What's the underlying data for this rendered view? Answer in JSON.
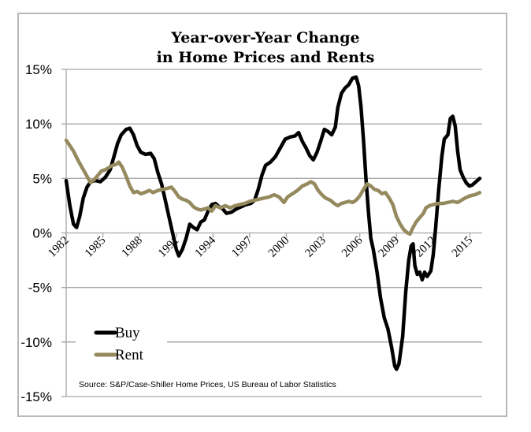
{
  "chart_data": {
    "type": "line",
    "title": "Year-over-Year Change\nin Home Prices and Rents",
    "title_lines": [
      "Year-over-Year Change",
      "in Home Prices and Rents"
    ],
    "xlabel": "",
    "ylabel": "",
    "xlim": [
      1982,
      2016
    ],
    "ylim": [
      -15,
      15
    ],
    "grid": "horizontal",
    "legend_position": "lower-left",
    "x_ticks": [
      1982,
      1985,
      1988,
      1991,
      1994,
      1997,
      2000,
      2003,
      2006,
      2009,
      2012,
      2015
    ],
    "x_tick_labels": [
      "1982",
      "1985",
      "1988",
      "1991",
      "1994",
      "1997",
      "2000",
      "2003",
      "2006",
      "2009",
      "2012",
      "2015"
    ],
    "y_ticks": [
      15,
      10,
      5,
      0,
      -5,
      -10,
      -15
    ],
    "y_tick_labels": [
      "15%",
      "10%",
      "5%",
      "0%",
      "-5%",
      "-10%",
      "-15%"
    ],
    "series": [
      {
        "name": "Buy",
        "color": "#000000",
        "points": [
          [
            1982.0,
            4.8
          ],
          [
            1982.3,
            2.5
          ],
          [
            1982.6,
            0.8
          ],
          [
            1982.85,
            0.5
          ],
          [
            1983.1,
            1.5
          ],
          [
            1983.4,
            3.2
          ],
          [
            1983.7,
            4.2
          ],
          [
            1984.0,
            4.7
          ],
          [
            1984.4,
            4.8
          ],
          [
            1984.8,
            4.7
          ],
          [
            1985.2,
            5.1
          ],
          [
            1985.6,
            5.8
          ],
          [
            1985.9,
            7.0
          ],
          [
            1986.2,
            8.2
          ],
          [
            1986.5,
            9.0
          ],
          [
            1986.9,
            9.5
          ],
          [
            1987.2,
            9.6
          ],
          [
            1987.5,
            9.0
          ],
          [
            1987.8,
            8.0
          ],
          [
            1988.1,
            7.4
          ],
          [
            1988.5,
            7.2
          ],
          [
            1988.9,
            7.3
          ],
          [
            1989.2,
            6.8
          ],
          [
            1989.5,
            5.5
          ],
          [
            1989.8,
            4.5
          ],
          [
            1990.1,
            3.0
          ],
          [
            1990.4,
            1.5
          ],
          [
            1990.7,
            0.0
          ],
          [
            1991.0,
            -1.5
          ],
          [
            1991.2,
            -2.1
          ],
          [
            1991.5,
            -1.5
          ],
          [
            1991.8,
            -0.5
          ],
          [
            1992.1,
            0.8
          ],
          [
            1992.4,
            0.5
          ],
          [
            1992.7,
            0.3
          ],
          [
            1993.0,
            1.0
          ],
          [
            1993.3,
            1.2
          ],
          [
            1993.6,
            2.0
          ],
          [
            1993.9,
            2.6
          ],
          [
            1994.2,
            2.7
          ],
          [
            1994.5,
            2.4
          ],
          [
            1994.8,
            2.2
          ],
          [
            1995.1,
            1.8
          ],
          [
            1995.5,
            1.9
          ],
          [
            1995.9,
            2.2
          ],
          [
            1996.3,
            2.4
          ],
          [
            1996.7,
            2.6
          ],
          [
            1997.1,
            2.7
          ],
          [
            1997.4,
            3.0
          ],
          [
            1997.7,
            4.0
          ],
          [
            1998.0,
            5.3
          ],
          [
            1998.3,
            6.2
          ],
          [
            1998.7,
            6.5
          ],
          [
            1999.1,
            7.0
          ],
          [
            1999.5,
            7.8
          ],
          [
            1999.9,
            8.6
          ],
          [
            2000.3,
            8.8
          ],
          [
            2000.7,
            8.9
          ],
          [
            2001.0,
            9.2
          ],
          [
            2001.3,
            8.4
          ],
          [
            2001.6,
            7.8
          ],
          [
            2001.9,
            7.1
          ],
          [
            2002.2,
            6.7
          ],
          [
            2002.5,
            7.4
          ],
          [
            2002.8,
            8.4
          ],
          [
            2003.1,
            9.5
          ],
          [
            2003.4,
            9.3
          ],
          [
            2003.7,
            9.0
          ],
          [
            2004.0,
            9.7
          ],
          [
            2004.2,
            11.5
          ],
          [
            2004.5,
            12.8
          ],
          [
            2004.8,
            13.3
          ],
          [
            2005.1,
            13.6
          ],
          [
            2005.4,
            14.2
          ],
          [
            2005.7,
            14.3
          ],
          [
            2005.9,
            13.5
          ],
          [
            2006.1,
            11.5
          ],
          [
            2006.3,
            8.5
          ],
          [
            2006.5,
            5.0
          ],
          [
            2006.7,
            2.0
          ],
          [
            2006.9,
            -0.5
          ],
          [
            2007.1,
            -1.5
          ],
          [
            2007.4,
            -3.5
          ],
          [
            2007.7,
            -6.0
          ],
          [
            2008.0,
            -7.8
          ],
          [
            2008.3,
            -8.8
          ],
          [
            2008.6,
            -10.5
          ],
          [
            2008.85,
            -12.2
          ],
          [
            2009.0,
            -12.5
          ],
          [
            2009.2,
            -12.0
          ],
          [
            2009.5,
            -9.5
          ],
          [
            2009.75,
            -5.5
          ],
          [
            2010.0,
            -2.5
          ],
          [
            2010.2,
            -1.2
          ],
          [
            2010.35,
            -1.0
          ],
          [
            2010.5,
            -3.0
          ],
          [
            2010.7,
            -3.8
          ],
          [
            2010.9,
            -3.6
          ],
          [
            2011.1,
            -4.3
          ],
          [
            2011.3,
            -3.6
          ],
          [
            2011.5,
            -4.0
          ],
          [
            2011.8,
            -3.5
          ],
          [
            2012.0,
            -2.0
          ],
          [
            2012.2,
            0.5
          ],
          [
            2012.45,
            4.0
          ],
          [
            2012.7,
            7.0
          ],
          [
            2012.9,
            8.6
          ],
          [
            2013.2,
            9.0
          ],
          [
            2013.4,
            10.5
          ],
          [
            2013.6,
            10.7
          ],
          [
            2013.8,
            9.8
          ],
          [
            2014.0,
            7.5
          ],
          [
            2014.2,
            5.8
          ],
          [
            2014.45,
            5.1
          ],
          [
            2014.7,
            4.6
          ],
          [
            2014.95,
            4.3
          ],
          [
            2015.2,
            4.4
          ],
          [
            2015.5,
            4.7
          ],
          [
            2015.8,
            5.0
          ]
        ]
      },
      {
        "name": "Rent",
        "color": "#958a5e",
        "points": [
          [
            1982.0,
            8.5
          ],
          [
            1982.3,
            8.0
          ],
          [
            1982.6,
            7.5
          ],
          [
            1982.9,
            6.8
          ],
          [
            1983.2,
            6.2
          ],
          [
            1983.5,
            5.6
          ],
          [
            1983.8,
            5.0
          ],
          [
            1984.0,
            4.6
          ],
          [
            1984.3,
            4.9
          ],
          [
            1984.6,
            5.3
          ],
          [
            1984.9,
            5.7
          ],
          [
            1985.2,
            5.8
          ],
          [
            1985.5,
            6.0
          ],
          [
            1985.8,
            6.2
          ],
          [
            1986.1,
            6.3
          ],
          [
            1986.3,
            6.5
          ],
          [
            1986.6,
            6.0
          ],
          [
            1986.9,
            5.2
          ],
          [
            1987.2,
            4.3
          ],
          [
            1987.5,
            3.7
          ],
          [
            1987.8,
            3.8
          ],
          [
            1988.1,
            3.6
          ],
          [
            1988.4,
            3.7
          ],
          [
            1988.8,
            3.9
          ],
          [
            1989.1,
            3.7
          ],
          [
            1989.5,
            3.9
          ],
          [
            1989.9,
            4.0
          ],
          [
            1990.3,
            4.1
          ],
          [
            1990.6,
            4.2
          ],
          [
            1990.9,
            3.8
          ],
          [
            1991.2,
            3.3
          ],
          [
            1991.5,
            3.1
          ],
          [
            1991.8,
            3.0
          ],
          [
            1992.1,
            2.8
          ],
          [
            1992.4,
            2.4
          ],
          [
            1992.7,
            2.2
          ],
          [
            1993.0,
            2.1
          ],
          [
            1993.3,
            2.2
          ],
          [
            1993.6,
            2.3
          ],
          [
            1993.9,
            2.0
          ],
          [
            1994.2,
            2.5
          ],
          [
            1994.6,
            2.3
          ],
          [
            1995.0,
            2.5
          ],
          [
            1995.4,
            2.3
          ],
          [
            1995.8,
            2.5
          ],
          [
            1996.2,
            2.6
          ],
          [
            1996.6,
            2.7
          ],
          [
            1997.0,
            2.9
          ],
          [
            1997.4,
            3.0
          ],
          [
            1997.8,
            3.1
          ],
          [
            1998.2,
            3.2
          ],
          [
            1998.6,
            3.3
          ],
          [
            1999.0,
            3.5
          ],
          [
            1999.4,
            3.3
          ],
          [
            1999.8,
            2.8
          ],
          [
            2000.1,
            3.3
          ],
          [
            2000.5,
            3.6
          ],
          [
            2000.9,
            3.9
          ],
          [
            2001.3,
            4.3
          ],
          [
            2001.7,
            4.5
          ],
          [
            2002.0,
            4.7
          ],
          [
            2002.3,
            4.5
          ],
          [
            2002.6,
            3.9
          ],
          [
            2002.9,
            3.5
          ],
          [
            2003.2,
            3.2
          ],
          [
            2003.6,
            3.0
          ],
          [
            2003.9,
            2.7
          ],
          [
            2004.2,
            2.5
          ],
          [
            2004.5,
            2.7
          ],
          [
            2004.8,
            2.8
          ],
          [
            2005.1,
            2.9
          ],
          [
            2005.4,
            2.8
          ],
          [
            2005.7,
            3.0
          ],
          [
            2006.0,
            3.4
          ],
          [
            2006.3,
            4.0
          ],
          [
            2006.6,
            4.5
          ],
          [
            2006.9,
            4.3
          ],
          [
            2007.2,
            4.0
          ],
          [
            2007.5,
            3.9
          ],
          [
            2007.8,
            3.6
          ],
          [
            2008.1,
            3.7
          ],
          [
            2008.4,
            3.2
          ],
          [
            2008.7,
            2.6
          ],
          [
            2009.0,
            1.5
          ],
          [
            2009.3,
            0.8
          ],
          [
            2009.6,
            0.3
          ],
          [
            2009.9,
            0.0
          ],
          [
            2010.1,
            -0.1
          ],
          [
            2010.3,
            0.4
          ],
          [
            2010.6,
            1.0
          ],
          [
            2010.9,
            1.4
          ],
          [
            2011.2,
            1.8
          ],
          [
            2011.4,
            2.3
          ],
          [
            2011.7,
            2.5
          ],
          [
            2012.0,
            2.6
          ],
          [
            2012.4,
            2.7
          ],
          [
            2012.8,
            2.7
          ],
          [
            2013.2,
            2.8
          ],
          [
            2013.6,
            2.9
          ],
          [
            2014.0,
            2.8
          ],
          [
            2014.3,
            3.0
          ],
          [
            2014.6,
            3.2
          ],
          [
            2015.0,
            3.4
          ],
          [
            2015.4,
            3.5
          ],
          [
            2015.8,
            3.7
          ]
        ]
      }
    ],
    "annotations": [
      "Source: S&P/Case-Shiller Home Prices, US Bureau  of Labor Statistics"
    ]
  },
  "title_lines": [
    "Year-over-Year Change",
    "in Home Prices and Rents"
  ],
  "legend": [
    {
      "label": "Buy",
      "color": "#000000"
    },
    {
      "label": "Rent",
      "color": "#958a5e"
    }
  ],
  "source": "Source: S&P/Case-Shiller Home Prices, US Bureau  of Labor Statistics"
}
